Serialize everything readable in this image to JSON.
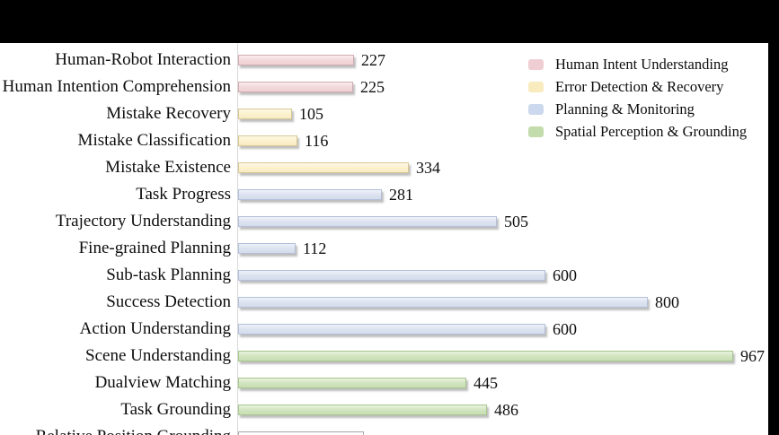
{
  "chart_data": {
    "type": "bar",
    "orientation": "horizontal",
    "title": "",
    "grid": false,
    "axis_line": true,
    "groups": [
      {
        "name": "Human Intent Understanding",
        "fill": "#F2D5D8",
        "border": "#D2ACB2",
        "swatch": "#EFCED3"
      },
      {
        "name": "Error Detection & Recovery",
        "fill": "#FBF0C9",
        "border": "#D8C893",
        "swatch": "#F8EBBE"
      },
      {
        "name": "Planning & Monitoring",
        "fill": "#D9E0EF",
        "border": "#B4C0DA",
        "swatch": "#CCD8ED"
      },
      {
        "name": "Spatial Perception & Grounding",
        "fill": "#CDE2B9",
        "border": "#A7C78D",
        "swatch": "#C3DCAC"
      }
    ],
    "bars": [
      {
        "category": "Human-Robot Interaction",
        "value": 227,
        "group": 0
      },
      {
        "category": "Human Intention Comprehension",
        "value": 225,
        "group": 0
      },
      {
        "category": "Mistake Recovery",
        "value": 105,
        "group": 1
      },
      {
        "category": "Mistake Classification",
        "value": 116,
        "group": 1
      },
      {
        "category": "Mistake Existence",
        "value": 334,
        "group": 1
      },
      {
        "category": "Task Progress",
        "value": 281,
        "group": 2
      },
      {
        "category": "Trajectory Understanding",
        "value": 505,
        "group": 2
      },
      {
        "category": "Fine-grained Planning",
        "value": 112,
        "group": 2
      },
      {
        "category": "Sub-task Planning",
        "value": 600,
        "group": 2
      },
      {
        "category": "Success Detection",
        "value": 800,
        "group": 2
      },
      {
        "category": "Action Understanding",
        "value": 600,
        "group": 2
      },
      {
        "category": "Scene Understanding",
        "value": 967,
        "group": 3
      },
      {
        "category": "Dualview Matching",
        "value": 445,
        "group": 3
      },
      {
        "category": "Task Grounding",
        "value": 486,
        "group": 3
      },
      {
        "category": "Relative Position Grounding",
        "value": null,
        "group": 3,
        "clipped": true
      }
    ],
    "legend": {
      "position": "top-right",
      "items": [
        "Human Intent Understanding",
        "Error Detection & Recovery",
        "Planning & Monitoring",
        "Spatial Perception & Grounding"
      ]
    }
  },
  "colors": {
    "background": "#FFFFFF",
    "letterbox": "#000000",
    "axis_line": "#D8D8D8",
    "text": "#0D0D0D"
  }
}
